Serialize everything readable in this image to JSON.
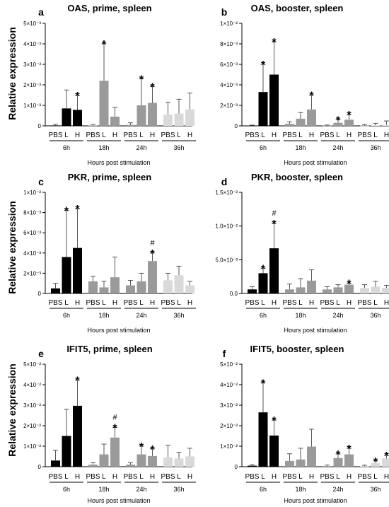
{
  "chart_data": [
    {
      "type": "bar",
      "panel": "a",
      "title": "OAS, prime, spleen",
      "ylabel": "Relative expression",
      "xlabel": "Hours post stimulation",
      "ylim": [
        0,
        0.005
      ],
      "yticks": [
        {
          "v": 0,
          "t": "0"
        },
        {
          "v": 0.001,
          "t": "1×10⁻³"
        },
        {
          "v": 0.002,
          "t": "2×10⁻³"
        },
        {
          "v": 0.003,
          "t": "3×10⁻³"
        },
        {
          "v": 0.004,
          "t": "4×10⁻³"
        },
        {
          "v": 0.005,
          "t": "5×10⁻³"
        }
      ],
      "categories": [
        "PBS",
        "L",
        "H"
      ],
      "groups": [
        {
          "label": "6h",
          "color": "#000000",
          "values": [
            2e-05,
            0.00085,
            0.00078
          ],
          "errors": [
            5e-05,
            0.0009,
            0.0007
          ],
          "marks": [
            "",
            "",
            "*"
          ]
        },
        {
          "label": "18h",
          "color": "#9a9a9a",
          "values": [
            2e-05,
            0.0022,
            0.00045
          ],
          "errors": [
            5e-05,
            0.0018,
            0.00045
          ],
          "marks": [
            "",
            "*",
            ""
          ]
        },
        {
          "label": "24h",
          "color": "#9a9a9a",
          "values": [
            5e-05,
            0.001,
            0.00112
          ],
          "errors": [
            0.0001,
            0.0013,
            0.0008
          ],
          "marks": [
            "",
            "*",
            "*"
          ]
        },
        {
          "label": "36h",
          "color": "#d9d9d9",
          "values": [
            0.00055,
            0.0006,
            0.0008
          ],
          "errors": [
            0.0006,
            0.0007,
            0.0008
          ],
          "marks": [
            "",
            "",
            ""
          ]
        }
      ]
    },
    {
      "type": "bar",
      "panel": "b",
      "title": "OAS, booster, spleen",
      "ylabel": "",
      "xlabel": "Hours post stimulation",
      "ylim": [
        0,
        0.01
      ],
      "yticks": [
        {
          "v": 0,
          "t": "0"
        },
        {
          "v": 0.002,
          "t": "2×10⁻³"
        },
        {
          "v": 0.004,
          "t": "4×10⁻³"
        },
        {
          "v": 0.006,
          "t": "6×10⁻³"
        },
        {
          "v": 0.008,
          "t": "8×10⁻³"
        },
        {
          "v": 0.01,
          "t": "1×10⁻²"
        }
      ],
      "categories": [
        "PBS",
        "L",
        "H"
      ],
      "groups": [
        {
          "label": "6h",
          "color": "#000000",
          "values": [
            2e-05,
            0.0033,
            0.005
          ],
          "errors": [
            5e-05,
            0.0027,
            0.0032
          ],
          "marks": [
            "",
            "*",
            "*"
          ]
        },
        {
          "label": "18h",
          "color": "#9a9a9a",
          "values": [
            0.0002,
            0.0007,
            0.0016
          ],
          "errors": [
            0.0002,
            0.0006,
            0.0014
          ],
          "marks": [
            "",
            "",
            "*"
          ]
        },
        {
          "label": "24h",
          "color": "#9a9a9a",
          "values": [
            3e-05,
            0.0003,
            0.0006
          ],
          "errors": [
            5e-05,
            0.0003,
            0.0005
          ],
          "marks": [
            "",
            "*",
            "*"
          ]
        },
        {
          "label": "36h",
          "color": "#d9d9d9",
          "values": [
            2e-05,
            5e-05,
            8e-05
          ],
          "errors": [
            0.0001,
            0.0002,
            0.0004
          ],
          "marks": [
            "",
            "",
            ""
          ]
        }
      ]
    },
    {
      "type": "bar",
      "panel": "c",
      "title": "PKR, prime, spleen",
      "ylabel": "Relative expression",
      "xlabel": "Hours post stimulation",
      "ylim": [
        0,
        0.01
      ],
      "yticks": [
        {
          "v": 0,
          "t": "0"
        },
        {
          "v": 0.002,
          "t": "2×10⁻³"
        },
        {
          "v": 0.004,
          "t": "4×10⁻³"
        },
        {
          "v": 0.006,
          "t": "6×10⁻³"
        },
        {
          "v": 0.008,
          "t": "8×10⁻³"
        },
        {
          "v": 0.01,
          "t": "1×10⁻²"
        }
      ],
      "categories": [
        "PBS",
        "L",
        "H"
      ],
      "groups": [
        {
          "label": "6h",
          "color": "#000000",
          "values": [
            0.0005,
            0.0036,
            0.0045
          ],
          "errors": [
            0.0005,
            0.0046,
            0.0039
          ],
          "marks": [
            "",
            "*",
            "*"
          ]
        },
        {
          "label": "18h",
          "color": "#9a9a9a",
          "values": [
            0.0012,
            0.0006,
            0.0016
          ],
          "errors": [
            0.0005,
            0.0006,
            0.002
          ],
          "marks": [
            "",
            "",
            ""
          ]
        },
        {
          "label": "24h",
          "color": "#9a9a9a",
          "values": [
            0.0008,
            0.0012,
            0.0032
          ],
          "errors": [
            0.0005,
            0.0008,
            0.0008
          ],
          "marks": [
            "",
            "",
            "#*"
          ]
        },
        {
          "label": "36h",
          "color": "#d9d9d9",
          "values": [
            0.0013,
            0.0018,
            0.0008
          ],
          "errors": [
            0.0007,
            0.0009,
            0.0004
          ],
          "marks": [
            "",
            "",
            ""
          ]
        }
      ]
    },
    {
      "type": "bar",
      "panel": "d",
      "title": "PKR, booster, spleen",
      "ylabel": "",
      "xlabel": "Hours post stimulation",
      "ylim": [
        0,
        0.015
      ],
      "yticks": [
        {
          "v": 0,
          "t": "0.0"
        },
        {
          "v": 0.005,
          "t": "5.0×10⁻³"
        },
        {
          "v": 0.01,
          "t": "1.0×10⁻²"
        },
        {
          "v": 0.015,
          "t": "1.5×10⁻²"
        }
      ],
      "categories": [
        "PBS",
        "L",
        "H"
      ],
      "groups": [
        {
          "label": "6h",
          "color": "#000000",
          "values": [
            0.0006,
            0.003,
            0.0067
          ],
          "errors": [
            0.0004,
            0.0007,
            0.0037
          ],
          "marks": [
            "",
            "*",
            "#*"
          ]
        },
        {
          "label": "18h",
          "color": "#9a9a9a",
          "values": [
            0.0006,
            0.0009,
            0.0019
          ],
          "errors": [
            0.0008,
            0.0013,
            0.0016
          ],
          "marks": [
            "",
            "",
            ""
          ]
        },
        {
          "label": "24h",
          "color": "#9a9a9a",
          "values": [
            0.0006,
            0.0009,
            0.0013
          ],
          "errors": [
            0.0004,
            0.0004,
            0.0002
          ],
          "marks": [
            "",
            "",
            "*"
          ]
        },
        {
          "label": "36h",
          "color": "#d9d9d9",
          "values": [
            0.0008,
            0.001,
            0.0008
          ],
          "errors": [
            0.0005,
            0.0008,
            0.0004
          ],
          "marks": [
            "",
            "",
            ""
          ]
        }
      ]
    },
    {
      "type": "bar",
      "panel": "e",
      "title": "IFIT5, prime, spleen",
      "ylabel": "Relative expression",
      "xlabel": "Hours post stimulation",
      "ylim": [
        0,
        0.05
      ],
      "yticks": [
        {
          "v": 0,
          "t": "0"
        },
        {
          "v": 0.01,
          "t": "1×10⁻²"
        },
        {
          "v": 0.02,
          "t": "2×10⁻²"
        },
        {
          "v": 0.03,
          "t": "3×10⁻²"
        },
        {
          "v": 0.04,
          "t": "4×10⁻²"
        },
        {
          "v": 0.05,
          "t": "5×10⁻²"
        }
      ],
      "categories": [
        "PBS",
        "L",
        "H"
      ],
      "groups": [
        {
          "label": "6h",
          "color": "#000000",
          "values": [
            0.003,
            0.015,
            0.0297
          ],
          "errors": [
            0.005,
            0.013,
            0.0125
          ],
          "marks": [
            "",
            "",
            "*"
          ]
        },
        {
          "label": "18h",
          "color": "#9a9a9a",
          "values": [
            0.001,
            0.006,
            0.0142
          ],
          "errors": [
            0.001,
            0.005,
            0.005
          ],
          "marks": [
            "",
            "",
            "#*"
          ]
        },
        {
          "label": "24h",
          "color": "#9a9a9a",
          "values": [
            0.001,
            0.006,
            0.0052
          ],
          "errors": [
            0.001,
            0.004,
            0.0035
          ],
          "marks": [
            "",
            "*",
            "*"
          ]
        },
        {
          "label": "36h",
          "color": "#d9d9d9",
          "values": [
            0.0045,
            0.004,
            0.005
          ],
          "errors": [
            0.006,
            0.003,
            0.004
          ],
          "marks": [
            "",
            "",
            ""
          ]
        }
      ]
    },
    {
      "type": "bar",
      "panel": "f",
      "title": "IFIT5, booster, spleen",
      "ylabel": "",
      "xlabel": "Hours post stimulation",
      "ylim": [
        0,
        0.05
      ],
      "yticks": [
        {
          "v": 0,
          "t": "0"
        },
        {
          "v": 0.01,
          "t": "1×10⁻²"
        },
        {
          "v": 0.02,
          "t": "2×10⁻²"
        },
        {
          "v": 0.03,
          "t": "3×10⁻²"
        },
        {
          "v": 0.04,
          "t": "4×10⁻²"
        },
        {
          "v": 0.05,
          "t": "5×10⁻²"
        }
      ],
      "categories": [
        "PBS",
        "L",
        "H"
      ],
      "groups": [
        {
          "label": "6h",
          "color": "#000000",
          "values": [
            0.0005,
            0.0265,
            0.0152
          ],
          "errors": [
            0.0005,
            0.0143,
            0.0075
          ],
          "marks": [
            "",
            "*",
            "*"
          ]
        },
        {
          "label": "18h",
          "color": "#9a9a9a",
          "values": [
            0.0028,
            0.0035,
            0.0098
          ],
          "errors": [
            0.0035,
            0.0055,
            0.0085
          ],
          "marks": [
            "",
            "",
            ""
          ]
        },
        {
          "label": "24h",
          "color": "#9a9a9a",
          "values": [
            0.0003,
            0.0042,
            0.006
          ],
          "errors": [
            0.0005,
            0.002,
            0.003
          ],
          "marks": [
            "",
            "*",
            "*"
          ]
        },
        {
          "label": "36h",
          "color": "#d9d9d9",
          "values": [
            0.0002,
            0.0018,
            0.004
          ],
          "errors": [
            0.0005,
            0.001,
            0.0015
          ],
          "marks": [
            "",
            "*",
            "*"
          ]
        }
      ]
    }
  ]
}
